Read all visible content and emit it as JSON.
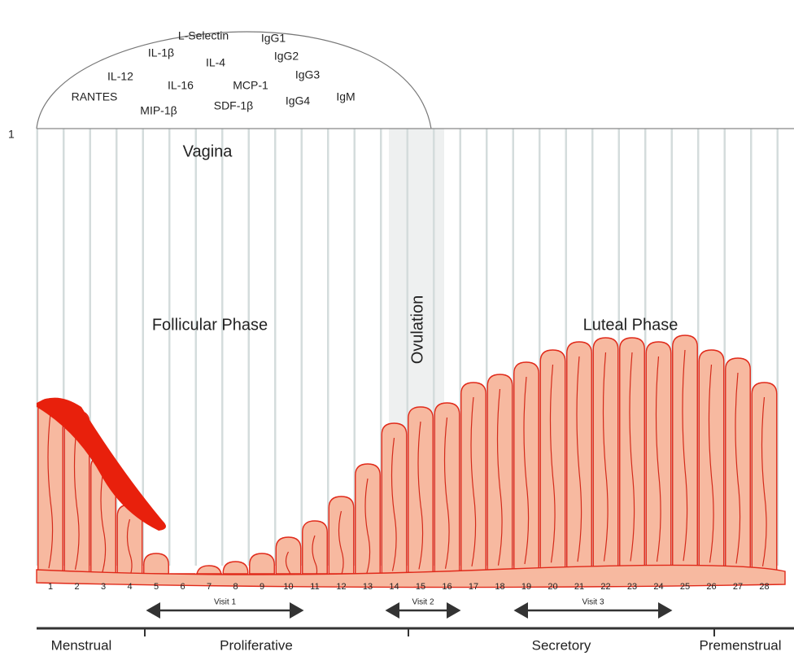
{
  "dome_labels": [
    "L-Selectin",
    "IgG1",
    "IL-1β",
    "IgG2",
    "IL-4",
    "IL-12",
    "IgG3",
    "IL-16",
    "MCP-1",
    "RANTES",
    "MIP-1β",
    "SDF-1β",
    "IgG4",
    "IgM"
  ],
  "marker": "1",
  "region": "Vagina",
  "phases": {
    "follicular": "Follicular Phase",
    "ovulation": "Ovulation",
    "luteal": "Luteal Phase"
  },
  "days": [
    1,
    2,
    3,
    4,
    5,
    6,
    7,
    8,
    9,
    10,
    11,
    12,
    13,
    14,
    15,
    16,
    17,
    18,
    19,
    20,
    21,
    22,
    23,
    24,
    25,
    26,
    27,
    28
  ],
  "visits": [
    "Visit 1",
    "Visit 2",
    "Visit 3"
  ],
  "stages": [
    "Menstrual",
    "Proliferative",
    "Secretory",
    "Premenstrual"
  ]
}
